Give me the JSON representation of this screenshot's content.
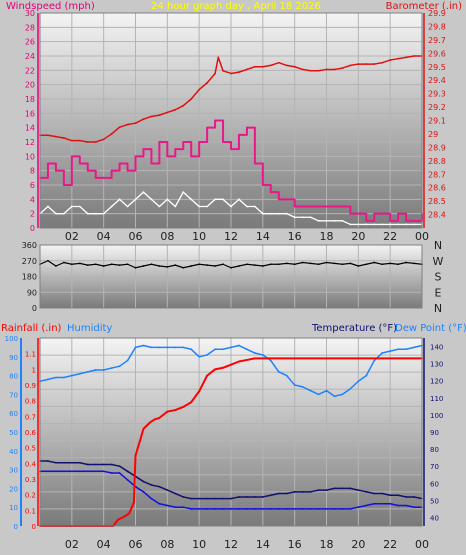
{
  "title": "24 hour graph day , April 18 2026",
  "colors": {
    "wind_axis": "#e0007a",
    "baro": "#e01010",
    "title": "#ffff00",
    "rain": "#ff0000",
    "humidity": "#1e82ff",
    "temp": "#101070",
    "dew": "#1010e0",
    "gust": "#e8188a",
    "avg_wind": "#ffffff",
    "direction": "#000000",
    "grid": "#b4b4b4",
    "tick_text": "#202020"
  },
  "chart_data": [
    {
      "type": "line",
      "ylabel_left": "Windspeed (mph)",
      "ylabel_right": "Barometer (.in)",
      "ylim_left": [
        0,
        30
      ],
      "ylim_right": [
        28.3,
        29.9
      ],
      "yticks_left": [
        "0",
        "2",
        "4",
        "6",
        "8",
        "10",
        "12",
        "14",
        "16",
        "18",
        "20",
        "22",
        "24",
        "26",
        "28",
        "30"
      ],
      "yticks_right": [
        "28.4",
        "28.5",
        "28.6",
        "28.7",
        "28.8",
        "28.9",
        "29",
        "29.1",
        "29.2",
        "29.3",
        "29.4",
        "29.5",
        "29.6",
        "29.7",
        "29.8",
        "29.9"
      ],
      "xticks": [
        "02",
        "04",
        "06",
        "08",
        "10",
        "12",
        "14",
        "16",
        "18",
        "20",
        "22",
        "00"
      ],
      "series": [
        {
          "axis": "right",
          "x": [
            0,
            0.5,
            1,
            1.5,
            2,
            2.5,
            3,
            3.5,
            4,
            4.5,
            5,
            5.5,
            6,
            6.5,
            7,
            7.5,
            8,
            8.5,
            9,
            9.5,
            10,
            10.5,
            11,
            11.2,
            11.5,
            12,
            12.5,
            13,
            13.5,
            14,
            14.5,
            15,
            15.5,
            16,
            16.5,
            17,
            17.5,
            18,
            18.5,
            19,
            19.5,
            20,
            20.5,
            21,
            21.5,
            22,
            22.5,
            23,
            23.5,
            24
          ],
          "values": [
            28.99,
            28.99,
            28.98,
            28.97,
            28.95,
            28.95,
            28.94,
            28.94,
            28.96,
            29.0,
            29.05,
            29.07,
            29.08,
            29.11,
            29.13,
            29.14,
            29.16,
            29.18,
            29.21,
            29.26,
            29.33,
            29.38,
            29.45,
            29.57,
            29.47,
            29.45,
            29.46,
            29.48,
            29.5,
            29.5,
            29.51,
            29.53,
            29.51,
            29.5,
            29.48,
            29.47,
            29.47,
            29.48,
            29.48,
            29.49,
            29.51,
            29.52,
            29.52,
            29.52,
            29.53,
            29.55,
            29.56,
            29.57,
            29.58,
            29.58
          ]
        },
        {
          "axis": "left",
          "x": [
            0,
            0.5,
            1,
            1.5,
            2,
            2.5,
            3,
            3.5,
            4,
            4.5,
            5,
            5.5,
            6,
            6.5,
            7,
            7.5,
            8,
            8.5,
            9,
            9.5,
            10,
            10.5,
            11,
            11.5,
            12,
            12.5,
            13,
            13.5,
            14,
            14.5,
            15,
            15.5,
            16,
            16.5,
            17,
            17.5,
            18,
            18.5,
            19,
            19.5,
            20,
            20.5,
            21,
            21.5,
            22,
            22.5,
            23,
            23.5,
            24
          ],
          "values": [
            7,
            9,
            8,
            6,
            10,
            9,
            8,
            7,
            7,
            8,
            9,
            8,
            10,
            11,
            9,
            12,
            10,
            11,
            12,
            10,
            12,
            14,
            15,
            12,
            11,
            13,
            14,
            9,
            6,
            5,
            4,
            4,
            3,
            3,
            3,
            3,
            3,
            3,
            3,
            2,
            2,
            1,
            2,
            2,
            1,
            2,
            1,
            1,
            2
          ]
        },
        {
          "axis": "left",
          "x": [
            0,
            0.5,
            1,
            1.5,
            2,
            2.5,
            3,
            3.5,
            4,
            4.5,
            5,
            5.5,
            6,
            6.5,
            7,
            7.5,
            8,
            8.5,
            9,
            9.5,
            10,
            10.5,
            11,
            11.5,
            12,
            12.5,
            13,
            13.5,
            14,
            14.5,
            15,
            15.5,
            16,
            16.5,
            17,
            17.5,
            18,
            18.5,
            19,
            19.5,
            20,
            20.5,
            21,
            21.5,
            22,
            22.5,
            23,
            23.5,
            24
          ],
          "values": [
            2,
            3,
            2,
            2,
            3,
            3,
            2,
            2,
            2,
            3,
            4,
            3,
            4,
            5,
            4,
            3,
            4,
            3,
            5,
            4,
            3,
            3,
            4,
            4,
            3,
            4,
            3,
            3,
            2,
            2,
            2,
            2,
            1.5,
            1.5,
            1.5,
            1,
            1,
            1,
            1,
            0.5,
            0.5,
            0.5,
            0.5,
            0.5,
            0.5,
            0.5,
            0.5,
            0.5,
            0.5
          ]
        }
      ]
    },
    {
      "type": "line",
      "ylim_left": [
        0,
        360
      ],
      "yticks_left": [
        "0",
        "90",
        "180",
        "270",
        "360"
      ],
      "labels_right": [
        "N",
        "W",
        "S",
        "E",
        "N"
      ],
      "series": [
        {
          "x": [
            0,
            0.5,
            1,
            1.5,
            2,
            2.5,
            3,
            3.5,
            4,
            4.5,
            5,
            5.5,
            6,
            6.5,
            7,
            7.5,
            8,
            8.5,
            9,
            9.5,
            10,
            10.5,
            11,
            11.5,
            12,
            12.5,
            13,
            13.5,
            14,
            14.5,
            15,
            15.5,
            16,
            16.5,
            17,
            17.5,
            18,
            18.5,
            19,
            19.5,
            20,
            20.5,
            21,
            21.5,
            22,
            22.5,
            23,
            23.5,
            24
          ],
          "values": [
            250,
            270,
            240,
            260,
            250,
            255,
            245,
            250,
            240,
            250,
            245,
            250,
            230,
            240,
            250,
            240,
            235,
            245,
            230,
            240,
            250,
            245,
            240,
            250,
            230,
            240,
            250,
            245,
            240,
            250,
            250,
            255,
            250,
            260,
            255,
            250,
            260,
            255,
            250,
            255,
            240,
            250,
            260,
            250,
            255,
            250,
            260,
            255,
            250
          ]
        }
      ]
    },
    {
      "type": "line",
      "ylabel_left": "Rainfall (.in)",
      "ylabel_left2": "Humidity",
      "ylabel_right": "Temperature (°F)",
      "ylabel_right2": "Dew Point (°F)",
      "ylim_left": [
        0,
        1.2
      ],
      "ylim_left2": [
        0,
        100
      ],
      "ylim_right": [
        35,
        145
      ],
      "yticks_left": [
        "0",
        "0.1",
        "0.2",
        "0.3",
        "0.4",
        "0.5",
        "0.6",
        "0.7",
        "0.8",
        "0.9",
        "1",
        "1.1"
      ],
      "yticks_left2": [
        "0",
        "10",
        "20",
        "30",
        "40",
        "50",
        "60",
        "70",
        "80",
        "90",
        "100"
      ],
      "yticks_right": [
        "40",
        "50",
        "60",
        "70",
        "80",
        "90",
        "100",
        "110",
        "120",
        "130",
        "140"
      ],
      "xticks": [
        "02",
        "04",
        "06",
        "08",
        "10",
        "12",
        "14",
        "16",
        "18",
        "20",
        "22",
        "00"
      ],
      "series": [
        {
          "axis": "left",
          "x": [
            0,
            4.6,
            4.9,
            5.3,
            5.6,
            5.9,
            6.0,
            6.3,
            6.5,
            6.9,
            7.2,
            7.5,
            8.0,
            8.5,
            9.0,
            9.5,
            10.0,
            10.5,
            11.0,
            11.5,
            12.0,
            12.5,
            13.0,
            13.5,
            14.0,
            14.5,
            24.0
          ],
          "values": [
            0,
            0,
            0.04,
            0.06,
            0.08,
            0.15,
            0.45,
            0.55,
            0.62,
            0.66,
            0.68,
            0.69,
            0.73,
            0.74,
            0.76,
            0.79,
            0.86,
            0.96,
            1.0,
            1.01,
            1.03,
            1.05,
            1.06,
            1.07,
            1.07,
            1.07,
            1.07
          ]
        },
        {
          "axis": "left2",
          "x": [
            0,
            0.5,
            1,
            1.5,
            2,
            2.5,
            3,
            3.5,
            4,
            4.5,
            5,
            5.5,
            6,
            6.5,
            7,
            7.5,
            8,
            8.5,
            9,
            9.5,
            10,
            10.5,
            11,
            11.5,
            12,
            12.5,
            13,
            13.5,
            14,
            14.5,
            15,
            15.5,
            16,
            16.5,
            17,
            17.5,
            18,
            18.5,
            19,
            19.5,
            20,
            20.5,
            21,
            21.5,
            22,
            22.5,
            23,
            23.5,
            24
          ],
          "values": [
            77,
            78,
            79,
            79,
            80,
            81,
            82,
            83,
            83,
            84,
            85,
            88,
            95,
            96,
            95,
            95,
            95,
            95,
            95,
            94,
            90,
            91,
            94,
            94,
            95,
            96,
            94,
            92,
            91,
            88,
            82,
            80,
            75,
            74,
            72,
            70,
            72,
            69,
            70,
            73,
            77,
            80,
            88,
            92,
            93,
            94,
            94,
            95,
            96
          ]
        },
        {
          "axis": "right",
          "x": [
            0,
            0.5,
            1,
            1.5,
            2,
            2.5,
            3,
            3.5,
            4,
            4.5,
            5,
            5.5,
            6,
            6.5,
            7,
            7.5,
            8,
            8.5,
            9,
            9.5,
            10,
            10.5,
            11,
            11.5,
            12,
            12.5,
            13,
            13.5,
            14,
            14.5,
            15,
            15.5,
            16,
            16.5,
            17,
            17.5,
            18,
            18.5,
            19,
            19.5,
            20,
            20.5,
            21,
            21.5,
            22,
            22.5,
            23,
            23.5,
            24
          ],
          "values": [
            73,
            73,
            72,
            72,
            72,
            72,
            71,
            71,
            71,
            71,
            70,
            67,
            64,
            61,
            59,
            58,
            56,
            54,
            52,
            51,
            51,
            51,
            51,
            51,
            51,
            52,
            52,
            52,
            52,
            53,
            54,
            54,
            55,
            55,
            55,
            56,
            56,
            57,
            57,
            57,
            56,
            55,
            54,
            54,
            53,
            53,
            52,
            52,
            51
          ]
        },
        {
          "axis": "right",
          "x": [
            0,
            0.5,
            1,
            1.5,
            2,
            2.5,
            3,
            3.5,
            4,
            4.5,
            5,
            5.5,
            6,
            6.5,
            7,
            7.5,
            8,
            8.5,
            9,
            9.5,
            10,
            10.5,
            11,
            11.5,
            12,
            12.5,
            13,
            13.5,
            14,
            14.5,
            15,
            15.5,
            16,
            16.5,
            17,
            17.5,
            18,
            18.5,
            19,
            19.5,
            20,
            20.5,
            21,
            21.5,
            22,
            22.5,
            23,
            23.5,
            24
          ],
          "values": [
            67,
            67,
            67,
            67,
            67,
            67,
            67,
            67,
            67,
            66,
            66,
            62,
            58,
            55,
            51,
            48,
            47,
            46,
            46,
            45,
            45,
            45,
            45,
            45,
            45,
            45,
            45,
            45,
            45,
            45,
            45,
            45,
            45,
            45,
            45,
            45,
            45,
            45,
            45,
            45,
            46,
            47,
            48,
            48,
            48,
            47,
            47,
            46,
            46
          ]
        }
      ]
    }
  ]
}
